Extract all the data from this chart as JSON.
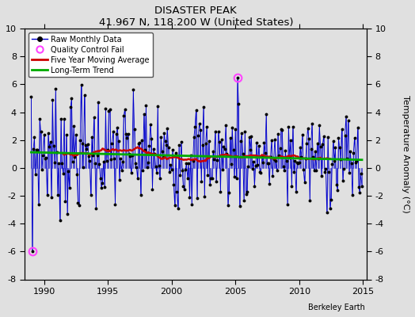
{
  "title": "DISASTER PEAK",
  "subtitle": "41.967 N, 118.200 W (United States)",
  "ylabel": "Temperature Anomaly (°C)",
  "xlabel_credit": "Berkeley Earth",
  "ylim": [
    -8,
    10
  ],
  "xlim": [
    1988.5,
    2015.3
  ],
  "xticks": [
    1990,
    1995,
    2000,
    2005,
    2010,
    2015
  ],
  "yticks": [
    -8,
    -6,
    -4,
    -2,
    0,
    2,
    4,
    6,
    8,
    10
  ],
  "bg_color": "#e0e0e0",
  "plot_bg_color": "#e0e0e0",
  "line_color": "#0000cc",
  "ma_color": "#cc0000",
  "trend_color": "#00aa00",
  "qc_color": "#ff44ff",
  "figwidth": 5.24,
  "figheight": 4.0,
  "dpi": 100
}
